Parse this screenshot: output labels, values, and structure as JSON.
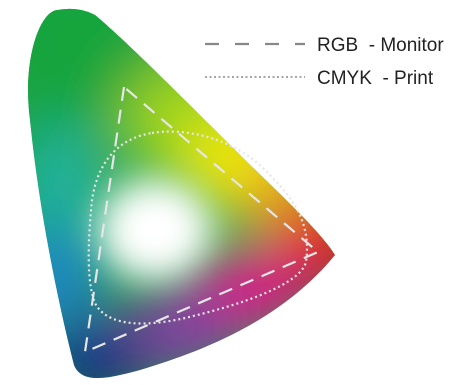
{
  "legend": {
    "rgb_label": "RGB  - Monitor",
    "cmyk_label": "CMYK  - Print"
  },
  "colors": {
    "background": "#ffffff",
    "rgb_outline": "#e6e6e6",
    "cmyk_outline": "#e6e6e6",
    "legend_text": "#222222",
    "legend_line": "#888888"
  },
  "icons": [
    "color-gamut-diagram",
    "rgb-triangle",
    "cmyk-gamut",
    "legend-dashed-line",
    "legend-dotted-line"
  ]
}
